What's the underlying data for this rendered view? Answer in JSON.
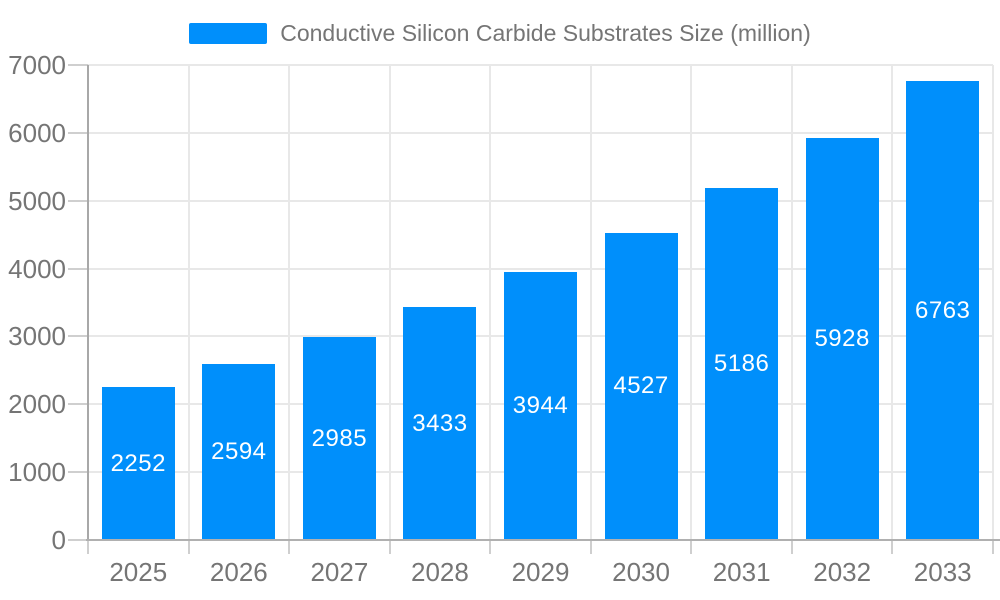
{
  "legend": {
    "label": "Conductive Silicon Carbide Substrates Size (million)",
    "marker_color": "#008FFB"
  },
  "chart_data": {
    "type": "bar",
    "title": "Conductive Silicon Carbide Substrates Size (million)",
    "categories": [
      "2025",
      "2026",
      "2027",
      "2028",
      "2029",
      "2030",
      "2031",
      "2032",
      "2033"
    ],
    "values": [
      2252,
      2594,
      2985,
      3433,
      3944,
      4527,
      5186,
      5928,
      6763
    ],
    "xlabel": "",
    "ylabel": "",
    "ylim": [
      0,
      7000
    ],
    "yticks": [
      0,
      1000,
      2000,
      3000,
      4000,
      5000,
      6000,
      7000
    ],
    "grid": true,
    "legend_position": "top",
    "data_labels": "inside-center",
    "colors": {
      "bar": "#008FFB",
      "value_label": "#FFFFFF",
      "axis_label": "#757575",
      "legend_text": "#757575",
      "gridline": "#E8E8E8",
      "y_axis_line": "#A8A8A8",
      "x_axis_line": "#B0B0B0",
      "tick": "#CFCFCF"
    }
  }
}
